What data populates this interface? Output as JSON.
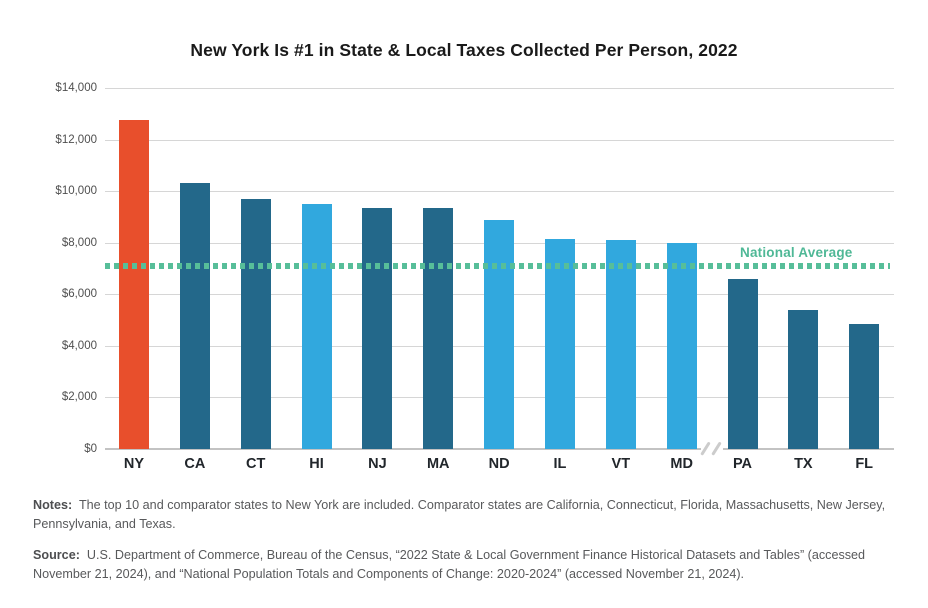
{
  "title": "New York Is #1 in State & Local Taxes Collected Per Person, 2022",
  "chart_data": {
    "type": "bar",
    "categories": [
      "NY",
      "CA",
      "CT",
      "HI",
      "NJ",
      "MA",
      "ND",
      "IL",
      "VT",
      "MD",
      "PA",
      "TX",
      "FL"
    ],
    "values": [
      12750,
      10300,
      9700,
      9500,
      9350,
      9330,
      8900,
      8150,
      8100,
      8000,
      6600,
      5400,
      4850
    ],
    "bar_colors": [
      "#E84F2C",
      "#23688A",
      "#23688A",
      "#31A8DE",
      "#23688A",
      "#23688A",
      "#31A8DE",
      "#31A8DE",
      "#31A8DE",
      "#31A8DE",
      "#23688A",
      "#23688A",
      "#23688A"
    ],
    "highlighted_category": "NY",
    "highlight_color": "#E84F2C",
    "dark_blue": "#23688A",
    "light_blue": "#31A8DE",
    "title": "New York Is #1 in State & Local Taxes Collected Per Person, 2022",
    "xlabel": "",
    "ylabel": "",
    "ylim": [
      0,
      14000
    ],
    "ytick_step": 2000,
    "ytick_labels": [
      "$0",
      "$2,000",
      "$4,000",
      "$6,000",
      "$8,000",
      "$10,000",
      "$12,000",
      "$14,000"
    ],
    "grid": true,
    "axis_break_between": [
      "MD",
      "PA"
    ],
    "reference_line": {
      "label": "National Average",
      "value": 7100,
      "color": "#57BE99",
      "label_color": "#4FB896",
      "style": "dashed"
    }
  },
  "notes": {
    "label": "Notes:",
    "text": "The top 10 and comparator states to New York are included. Comparator states are California, Connecticut, Florida, Massachusetts, New Jersey, Pennsylvania, and Texas."
  },
  "source": {
    "label": "Source:",
    "text": "U.S. Department of Commerce, Bureau of the Census, “2022 State & Local Government Finance Historical Datasets and Tables” (accessed November 21, 2024), and “National Population Totals and Components of Change: 2020-2024” (accessed November 21, 2024)."
  }
}
